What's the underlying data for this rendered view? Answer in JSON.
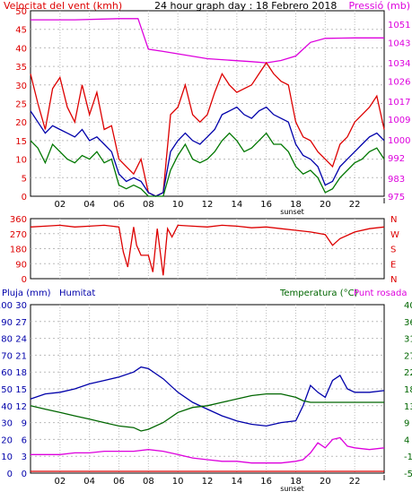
{
  "colors": {
    "wind": "#dd0000",
    "gust": "#dd0000",
    "wind_avg": "#0000aa",
    "wind_low": "#007700",
    "pressure": "#dd00dd",
    "humidity": "#0000aa",
    "temperature": "#006600",
    "dewpoint": "#dd00dd",
    "rain": "#dd0000",
    "grid": "#bbbbbb"
  },
  "header": {
    "wind_label": "Velocitat del vent (kmh)",
    "title": "24 hour graph day : 18 Febrero 2018",
    "pressure_label": "Pressió (mb)"
  },
  "lower_header": {
    "rain_label": "Pluja (mm)",
    "humidity_label": "Humitat",
    "temp_label": "Temperatura (°C)",
    "dew_label": "Punt rosada"
  },
  "chart_data": [
    {
      "type": "line",
      "title": "24 hour graph day : 18 Febrero 2018",
      "ylabel": "Velocitat del vent (kmh)",
      "y2label": "Pressió (mb)",
      "ylim": [
        0,
        50
      ],
      "y2lim": [
        975,
        1057
      ],
      "x_ticks": [
        "02",
        "04",
        "06",
        "08",
        "10",
        "12",
        "14",
        "16",
        "18",
        "20",
        "22"
      ],
      "x_extra_ticks": [
        "sunset"
      ],
      "y_ticks": [
        "0",
        "5",
        "10",
        "15",
        "20",
        "25",
        "30",
        "35",
        "40",
        "45",
        "50"
      ],
      "y2_ticks": [
        "975",
        "983",
        "992",
        "1000",
        "1009",
        "1017",
        "1026",
        "1034",
        "1043",
        "1051"
      ],
      "series": [
        {
          "name": "Pressió (mb)",
          "axis": "y2",
          "x": [
            0,
            3,
            6,
            7.3,
            8,
            9,
            12,
            15,
            16,
            17,
            18,
            18.5,
            19,
            20,
            22,
            24
          ],
          "values": [
            1053,
            1053,
            1053.5,
            1053.5,
            1040,
            1039,
            1035.8,
            1034.5,
            1034,
            1035,
            1037,
            1040,
            1043,
            1044.8,
            1045,
            1045
          ]
        },
        {
          "name": "gust",
          "axis": "y",
          "x": [
            0,
            0.5,
            1,
            1.5,
            2,
            2.5,
            3,
            3.5,
            4,
            4.5,
            5,
            5.5,
            6,
            6.5,
            7,
            7.5,
            8,
            8.5,
            9,
            9.5,
            10,
            10.5,
            11,
            11.5,
            12,
            12.5,
            13,
            13.5,
            14,
            14.5,
            15,
            15.5,
            16,
            16.5,
            17,
            17.5,
            18,
            18.5,
            19,
            19.5,
            20,
            20.5,
            21,
            21.5,
            22,
            22.5,
            23,
            23.5,
            24
          ],
          "values": [
            33,
            25,
            18,
            29,
            32,
            24,
            20,
            30,
            22,
            28,
            18,
            19,
            10,
            8,
            6,
            10,
            1,
            0,
            1,
            22,
            24,
            30,
            22,
            20,
            22,
            28,
            33,
            30,
            28,
            29,
            30,
            33,
            36,
            33,
            31,
            30,
            20,
            16,
            15,
            12,
            10,
            8,
            14,
            16,
            20,
            22,
            24,
            27,
            18
          ]
        },
        {
          "name": "wind_avg",
          "axis": "y",
          "x": [
            0,
            0.5,
            1,
            1.5,
            2,
            2.5,
            3,
            3.5,
            4,
            4.5,
            5,
            5.5,
            6,
            6.5,
            7,
            7.5,
            8,
            8.5,
            9,
            9.5,
            10,
            10.5,
            11,
            11.5,
            12,
            12.5,
            13,
            13.5,
            14,
            14.5,
            15,
            15.5,
            16,
            16.5,
            17,
            17.5,
            18,
            18.5,
            19,
            19.5,
            20,
            20.5,
            21,
            21.5,
            22,
            22.5,
            23,
            23.5,
            24
          ],
          "values": [
            23,
            20,
            17,
            19,
            18,
            17,
            16,
            18,
            15,
            16,
            14,
            12,
            6,
            4,
            5,
            4,
            1,
            0,
            1,
            12,
            15,
            17,
            15,
            14,
            16,
            18,
            22,
            23,
            24,
            22,
            21,
            23,
            24,
            22,
            21,
            20,
            14,
            11,
            10,
            8,
            3,
            4,
            8,
            10,
            12,
            14,
            16,
            17,
            15
          ]
        },
        {
          "name": "wind_low",
          "axis": "y",
          "x": [
            0,
            0.5,
            1,
            1.5,
            2,
            2.5,
            3,
            3.5,
            4,
            4.5,
            5,
            5.5,
            6,
            6.5,
            7,
            7.5,
            8,
            8.5,
            9,
            9.5,
            10,
            10.5,
            11,
            11.5,
            12,
            12.5,
            13,
            13.5,
            14,
            14.5,
            15,
            15.5,
            16,
            16.5,
            17,
            17.5,
            18,
            18.5,
            19,
            19.5,
            20,
            20.5,
            21,
            21.5,
            22,
            22.5,
            23,
            23.5,
            24
          ],
          "values": [
            15,
            13,
            9,
            14,
            12,
            10,
            9,
            11,
            10,
            12,
            9,
            10,
            3,
            2,
            3,
            2,
            0,
            0,
            0,
            7,
            11,
            14,
            10,
            9,
            10,
            12,
            15,
            17,
            15,
            12,
            13,
            15,
            17,
            14,
            14,
            12,
            8,
            6,
            7,
            5,
            1,
            2,
            5,
            7,
            9,
            10,
            12,
            13,
            10
          ]
        }
      ]
    },
    {
      "type": "scatter",
      "title": "",
      "ylabel": "Wind direction",
      "ylim": [
        0,
        360
      ],
      "y_ticks": [
        "0",
        "90",
        "180",
        "270",
        "360"
      ],
      "y2_ticks": [
        "N",
        "E",
        "S",
        "W",
        "N"
      ],
      "series": [
        {
          "name": "direction",
          "x": [
            0,
            1,
            2,
            3,
            4,
            5,
            6,
            6.3,
            6.6,
            7,
            7.2,
            7.5,
            8,
            8.3,
            8.6,
            9,
            9.3,
            9.6,
            10,
            11,
            12,
            13,
            14,
            15,
            16,
            17,
            18,
            19,
            20,
            20.5,
            21,
            21.5,
            22,
            23,
            24
          ],
          "values": [
            310,
            315,
            320,
            310,
            315,
            320,
            310,
            160,
            70,
            310,
            200,
            140,
            140,
            40,
            300,
            20,
            300,
            250,
            320,
            315,
            310,
            320,
            315,
            305,
            310,
            300,
            290,
            280,
            265,
            200,
            240,
            260,
            280,
            300,
            310
          ]
        }
      ]
    },
    {
      "type": "line",
      "title": "",
      "ylabel": "Pluja (mm)",
      "y_humidity_label": "Humitat",
      "y2label": "Temperatura (°C)",
      "y3label": "Punt rosada",
      "rain_ticks": [
        "0",
        "3",
        "6",
        "9",
        "12",
        "15",
        "18",
        "21",
        "24",
        "27",
        "30"
      ],
      "humidity_ticks": [
        "0",
        "10",
        "20",
        "30",
        "40",
        "50",
        "60",
        "70",
        "80",
        "90",
        "100"
      ],
      "temp_ticks": [
        "-5",
        "-1",
        "4",
        "9",
        "13",
        "18",
        "22",
        "27",
        "31",
        "36",
        "40"
      ],
      "ylim": [
        0,
        100
      ],
      "series": [
        {
          "name": "Humitat",
          "x": [
            0,
            1,
            2,
            3,
            4,
            5,
            6,
            7,
            7.5,
            8,
            9,
            10,
            11,
            12,
            13,
            14,
            15,
            16,
            17,
            18,
            18.5,
            19,
            19.5,
            20,
            20.5,
            21,
            21.5,
            22,
            23,
            24
          ],
          "values": [
            44,
            47,
            48,
            50,
            53,
            55,
            57,
            60,
            63,
            62,
            56,
            48,
            42,
            38,
            34,
            31,
            29,
            28,
            30,
            31,
            40,
            52,
            48,
            45,
            55,
            58,
            50,
            48,
            48,
            49
          ]
        },
        {
          "name": "Temperatura (°C)",
          "x": [
            0,
            1,
            2,
            3,
            4,
            5,
            6,
            7,
            7.5,
            8,
            9,
            10,
            11,
            12,
            13,
            14,
            15,
            16,
            17,
            18,
            18.5,
            19,
            20,
            21,
            22,
            23,
            24
          ],
          "values": [
            40,
            38,
            36,
            34,
            32,
            30,
            28,
            27,
            25,
            26,
            30,
            36,
            39,
            40,
            42,
            44,
            46,
            47,
            47,
            45,
            43,
            42,
            42,
            42,
            42,
            42,
            42
          ]
        },
        {
          "name": "Punt rosada",
          "x": [
            0,
            1,
            2,
            3,
            4,
            5,
            6,
            7,
            8,
            9,
            10,
            11,
            12,
            13,
            14,
            15,
            16,
            17,
            18,
            18.5,
            19,
            19.5,
            20,
            20.5,
            21,
            21.5,
            22,
            23,
            24
          ],
          "values": [
            11,
            11,
            11,
            12,
            12,
            13,
            13,
            13,
            14,
            13,
            11,
            9,
            8,
            7,
            7,
            6,
            6,
            6,
            7,
            8,
            12,
            18,
            15,
            20,
            21,
            16,
            15,
            14,
            15
          ]
        },
        {
          "name": "Pluja (mm)",
          "x": [
            0,
            24
          ],
          "values": [
            0,
            0
          ]
        }
      ]
    }
  ]
}
